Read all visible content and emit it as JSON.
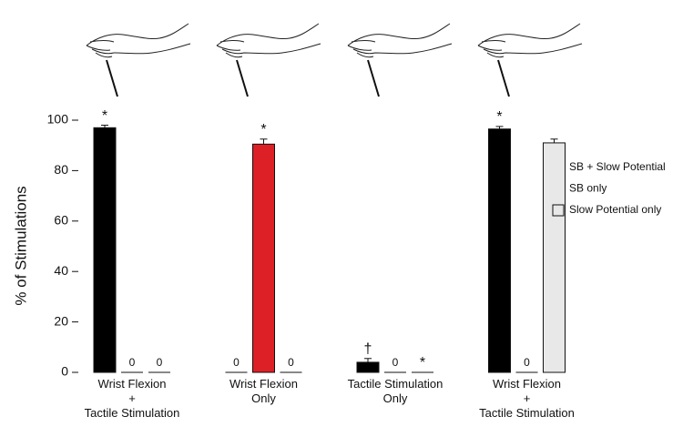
{
  "chart_data": {
    "type": "bar",
    "y_label": "% of Stimulations",
    "categories": [
      "Wrist Flexion\n+\nTactile Stimulation",
      "Wrist Flexion\nOnly",
      "Tactile Stimulation\nOnly",
      "Wrist Flexion\n+\nTactile Stimulation"
    ],
    "series": [
      {
        "name": "SB + Slow Potential",
        "color": "#000000",
        "values": [
          97,
          0,
          4,
          96.5
        ],
        "errors": [
          1,
          0,
          1.5,
          1
        ],
        "annotations": [
          "*",
          null,
          "†",
          "*"
        ]
      },
      {
        "name": "SB only",
        "color": "#dd2026",
        "values": [
          0,
          90.5,
          0,
          0
        ],
        "errors": [
          0,
          2,
          0,
          0
        ],
        "annotations": [
          null,
          "*",
          null,
          null
        ]
      },
      {
        "name": "Slow Potential only",
        "color": "#e8e8e8",
        "values": [
          0,
          0,
          0,
          91
        ],
        "errors": [
          0,
          0,
          0,
          1.5
        ],
        "annotations": [
          null,
          null,
          "*",
          null
        ]
      }
    ],
    "ylim": [
      0,
      100
    ],
    "yticks": [
      0,
      20,
      40,
      60,
      80,
      100
    ],
    "grid": false
  }
}
